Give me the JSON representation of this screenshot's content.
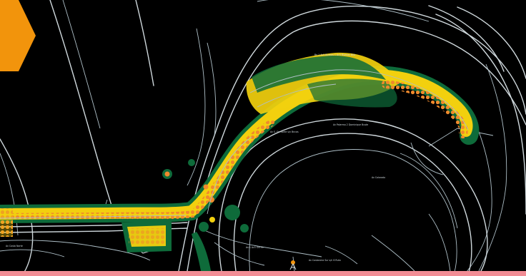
{
  "map": {
    "type": "heatmap-over-street-lines",
    "background_color": "#000000",
    "line_color": "#cfd8dc",
    "heat_colors": {
      "low": "#0e6b3a",
      "mid": "#f2d00e",
      "high": "#f08a2c"
    },
    "street_labels": [
      "Ba 1 Ac5 Buenos 1 Ac5 Buenos Dntr",
      "Av S. Gn Norte s/n Bncas",
      "Av Palermo 2 Dominique Buste",
      "Av Costa Norte",
      "Av 1 Ac5 Oct Br",
      "Av Costanera Sur s/n 6 Ruta",
      "Av Colorado"
    ],
    "marker_icon": "location-pin-icon"
  },
  "badge": {
    "color": "#f2940c",
    "icon": "corner-badge-icon"
  },
  "bottom_bar": {
    "color": "#f28d95"
  }
}
